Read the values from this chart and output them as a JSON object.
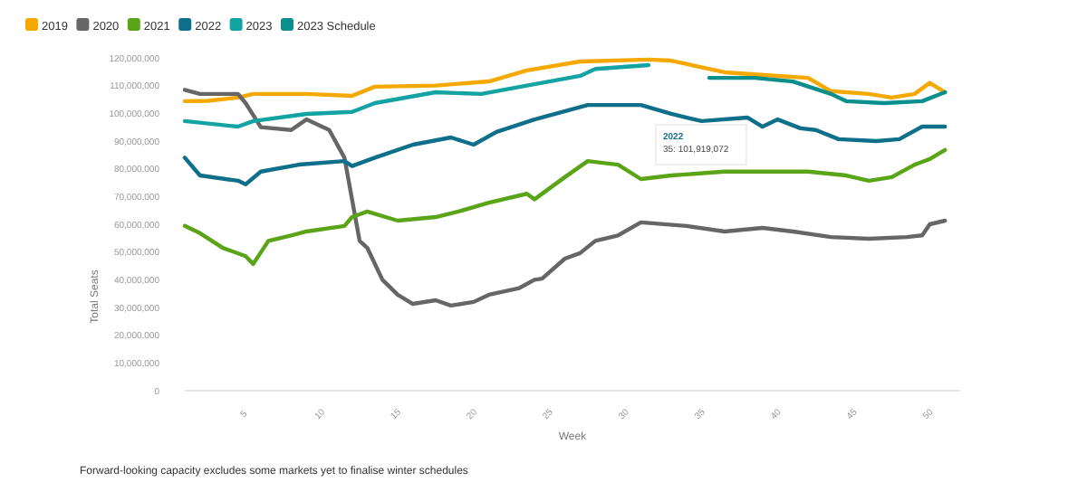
{
  "chart_data": {
    "type": "line",
    "xlabel": "Week",
    "ylabel": "Total Seats",
    "legend": "top left",
    "grid": false,
    "marker": "none",
    "line_style": "solid",
    "xlim": [
      1,
      52
    ],
    "xticks": [
      5,
      10,
      15,
      20,
      25,
      30,
      35,
      40,
      45,
      50
    ],
    "ylim": [
      0,
      120000000
    ],
    "yticks": [
      {
        "value": 0,
        "label": "0"
      },
      {
        "value": 10000000,
        "label": "10,000,000"
      },
      {
        "value": 20000000,
        "label": "20,000,000"
      },
      {
        "value": 30000000,
        "label": "30,000,000"
      },
      {
        "value": 40000000,
        "label": "40,000,000"
      },
      {
        "value": 50000000,
        "label": "50,000,000"
      },
      {
        "value": 60000000,
        "label": "60,000,000"
      },
      {
        "value": 70000000,
        "label": "70,000,000"
      },
      {
        "value": 80000000,
        "label": "80,000,000"
      },
      {
        "value": 90000000,
        "label": "90,000,000"
      },
      {
        "value": 100000000,
        "label": "100,000,000"
      },
      {
        "value": 110000000,
        "label": "110,000,000"
      },
      {
        "value": 120000000,
        "label": "120,000,000"
      }
    ],
    "series": [
      {
        "name": "2019",
        "color": "#f5a800",
        "x": [
          1,
          2.5,
          4.5,
          5.5,
          9,
          12,
          13.5,
          17.5,
          21,
          23.5,
          27,
          31.5,
          33,
          36.5,
          40,
          42,
          43.5,
          46,
          47.5,
          49,
          50,
          51
        ],
        "values": [
          104400000,
          104500000,
          105700000,
          107000000,
          107000000,
          106300000,
          109600000,
          110000000,
          111500000,
          115500000,
          118700000,
          119400000,
          119000000,
          114800000,
          113500000,
          112800000,
          108000000,
          107000000,
          105700000,
          107000000,
          111000000,
          107600000
        ]
      },
      {
        "name": "2020",
        "color": "#666666",
        "x": [
          1,
          2,
          4.5,
          5,
          6,
          8,
          9,
          10.5,
          11.5,
          12,
          12.5,
          13,
          14,
          15,
          16,
          17.5,
          18.5,
          20,
          21,
          23,
          24,
          24.5,
          26,
          27,
          28,
          29.5,
          31,
          34,
          36.5,
          39,
          41,
          43.5,
          46,
          48.5,
          49.5,
          50,
          51
        ],
        "values": [
          108500000,
          107000000,
          107000000,
          103700000,
          95000000,
          94000000,
          97800000,
          94000000,
          84000000,
          69000000,
          54000000,
          51500000,
          40000000,
          34600000,
          31300000,
          32600000,
          30700000,
          32000000,
          34600000,
          37000000,
          40000000,
          40400000,
          47600000,
          49600000,
          54000000,
          56000000,
          60700000,
          59400000,
          57400000,
          58700000,
          57400000,
          55400000,
          54800000,
          55400000,
          56000000,
          60000000,
          61300000
        ]
      },
      {
        "name": "2021",
        "color": "#5aa417",
        "x": [
          1,
          2,
          3.5,
          5,
          5.5,
          6.5,
          8,
          9,
          11.5,
          12,
          13,
          15,
          17.5,
          19,
          21,
          23.5,
          24,
          26,
          27.5,
          29.5,
          31,
          33,
          36.5,
          40,
          42,
          44.5,
          46,
          47.5,
          49,
          50,
          51
        ],
        "values": [
          59400000,
          56800000,
          51500000,
          48500000,
          45700000,
          54000000,
          56000000,
          57400000,
          59400000,
          62600000,
          64600000,
          61300000,
          62600000,
          64600000,
          67800000,
          71000000,
          69000000,
          77000000,
          82800000,
          81500000,
          76300000,
          77600000,
          79000000,
          79000000,
          79000000,
          77600000,
          75700000,
          77000000,
          81500000,
          83500000,
          86800000
        ]
      },
      {
        "name": "2022",
        "color": "#0e6f8a",
        "x": [
          1,
          2,
          4.5,
          5,
          6,
          8.5,
          11.5,
          12,
          13.5,
          16,
          18.5,
          20,
          21.5,
          24,
          27.5,
          31,
          33,
          35,
          38,
          39,
          40,
          41.5,
          42.5,
          44,
          46.5,
          48,
          49.5,
          51
        ],
        "values": [
          84000000,
          77600000,
          75700000,
          74400000,
          79000000,
          81500000,
          82800000,
          81000000,
          84000000,
          88700000,
          91300000,
          88700000,
          93300000,
          97800000,
          103000000,
          103000000,
          99800000,
          97200000,
          98500000,
          95200000,
          97800000,
          94600000,
          94000000,
          90700000,
          90000000,
          90700000,
          95200000,
          95200000
        ]
      },
      {
        "name": "2023",
        "color": "#14a3a3",
        "x": [
          1,
          4.5,
          5.5,
          9,
          12,
          13.5,
          17.5,
          20.5,
          23.5,
          27,
          28,
          31.5
        ],
        "values": [
          97200000,
          95200000,
          97200000,
          99800000,
          100500000,
          103700000,
          107600000,
          107000000,
          110000000,
          113500000,
          116000000,
          117400000
        ]
      },
      {
        "name": "2023 Schedule",
        "color": "#0b8f8c",
        "x": [
          35.5,
          38.5,
          41,
          43.5,
          44.5,
          47,
          49.5,
          51
        ],
        "values": [
          112800000,
          112800000,
          111500000,
          107000000,
          104400000,
          103700000,
          104400000,
          107600000
        ]
      }
    ],
    "annotations": [
      "2022",
      "35: 101,919,072",
      "Forward-looking capacity excludes some markets yet to finalise winter schedules"
    ]
  }
}
